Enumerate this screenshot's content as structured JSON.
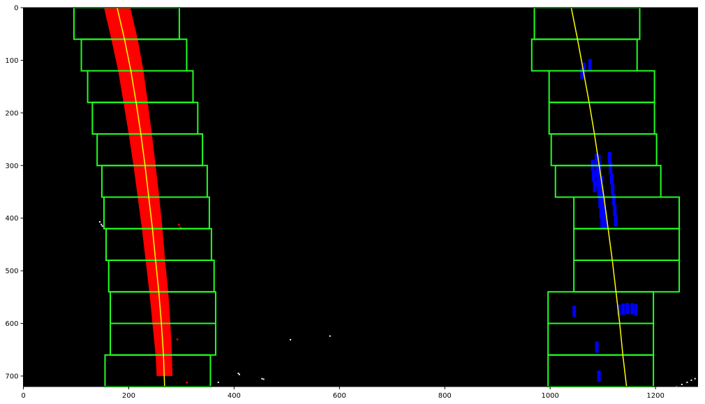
{
  "chart_data": {
    "type": "image-plot",
    "title": "",
    "xlabel": "",
    "ylabel": "",
    "xlim": [
      0,
      1280
    ],
    "ylim": [
      720,
      0
    ],
    "x_ticks": [
      0,
      200,
      400,
      600,
      800,
      1000,
      1200
    ],
    "y_ticks": [
      0,
      100,
      200,
      300,
      400,
      500,
      600,
      700
    ],
    "grid": false,
    "background_color": "#000000",
    "colors": {
      "window": "#22ff22",
      "left_pixels": "#ff0000",
      "right_pixels": "#0000ff",
      "fit_line": "#ffff00",
      "noise": "#ffffff"
    },
    "left_windows": [
      {
        "x0": 96,
        "x1": 296,
        "y0": 0,
        "y1": 60
      },
      {
        "x0": 110,
        "x1": 310,
        "y0": 60,
        "y1": 120
      },
      {
        "x0": 122,
        "x1": 322,
        "y0": 120,
        "y1": 180
      },
      {
        "x0": 131,
        "x1": 331,
        "y0": 180,
        "y1": 240
      },
      {
        "x0": 140,
        "x1": 340,
        "y0": 240,
        "y1": 300
      },
      {
        "x0": 149,
        "x1": 349,
        "y0": 300,
        "y1": 360
      },
      {
        "x0": 153,
        "x1": 353,
        "y0": 360,
        "y1": 420
      },
      {
        "x0": 157,
        "x1": 357,
        "y0": 420,
        "y1": 480
      },
      {
        "x0": 162,
        "x1": 362,
        "y0": 480,
        "y1": 540
      },
      {
        "x0": 165,
        "x1": 365,
        "y0": 540,
        "y1": 600
      },
      {
        "x0": 165,
        "x1": 365,
        "y0": 600,
        "y1": 660
      },
      {
        "x0": 155,
        "x1": 355,
        "y0": 660,
        "y1": 720
      }
    ],
    "right_windows": [
      {
        "x0": 970,
        "x1": 1170,
        "y0": 0,
        "y1": 60
      },
      {
        "x0": 965,
        "x1": 1165,
        "y0": 60,
        "y1": 120
      },
      {
        "x0": 998,
        "x1": 1198,
        "y0": 120,
        "y1": 180
      },
      {
        "x0": 998,
        "x1": 1198,
        "y0": 180,
        "y1": 240
      },
      {
        "x0": 1002,
        "x1": 1202,
        "y0": 240,
        "y1": 300
      },
      {
        "x0": 1010,
        "x1": 1210,
        "y0": 300,
        "y1": 360
      },
      {
        "x0": 1045,
        "x1": 1245,
        "y0": 360,
        "y1": 420
      },
      {
        "x0": 1045,
        "x1": 1245,
        "y0": 420,
        "y1": 480
      },
      {
        "x0": 1045,
        "x1": 1245,
        "y0": 480,
        "y1": 540
      },
      {
        "x0": 996,
        "x1": 1196,
        "y0": 540,
        "y1": 600
      },
      {
        "x0": 996,
        "x1": 1196,
        "y0": 600,
        "y1": 660
      },
      {
        "x0": 996,
        "x1": 1196,
        "y0": 660,
        "y1": 720
      }
    ],
    "left_fit_line": [
      {
        "x": 178,
        "y": 0
      },
      {
        "x": 192,
        "y": 60
      },
      {
        "x": 204,
        "y": 120
      },
      {
        "x": 214,
        "y": 180
      },
      {
        "x": 223,
        "y": 240
      },
      {
        "x": 231,
        "y": 300
      },
      {
        "x": 238,
        "y": 360
      },
      {
        "x": 245,
        "y": 420
      },
      {
        "x": 251,
        "y": 480
      },
      {
        "x": 257,
        "y": 540
      },
      {
        "x": 262,
        "y": 600
      },
      {
        "x": 266,
        "y": 660
      },
      {
        "x": 268,
        "y": 720
      }
    ],
    "left_pixels_band": [
      {
        "y": 0,
        "x_min": 153,
        "x_max": 203
      },
      {
        "y": 60,
        "x_min": 167,
        "x_max": 217
      },
      {
        "y": 120,
        "x_min": 180,
        "x_max": 228
      },
      {
        "y": 180,
        "x_min": 190,
        "x_max": 236
      },
      {
        "y": 240,
        "x_min": 200,
        "x_max": 244
      },
      {
        "y": 300,
        "x_min": 209,
        "x_max": 251
      },
      {
        "y": 360,
        "x_min": 217,
        "x_max": 258
      },
      {
        "y": 420,
        "x_min": 225,
        "x_max": 264
      },
      {
        "y": 480,
        "x_min": 232,
        "x_max": 269
      },
      {
        "y": 540,
        "x_min": 239,
        "x_max": 275
      },
      {
        "y": 600,
        "x_min": 245,
        "x_max": 279
      },
      {
        "y": 660,
        "x_min": 251,
        "x_max": 282
      },
      {
        "y": 700,
        "x_min": 253,
        "x_max": 283
      }
    ],
    "right_fit_line": [
      {
        "x": 1040,
        "y": 0
      },
      {
        "x": 1052,
        "y": 60
      },
      {
        "x": 1063,
        "y": 120
      },
      {
        "x": 1074,
        "y": 180
      },
      {
        "x": 1084,
        "y": 240
      },
      {
        "x": 1093,
        "y": 300
      },
      {
        "x": 1102,
        "y": 360
      },
      {
        "x": 1110,
        "y": 420
      },
      {
        "x": 1118,
        "y": 480
      },
      {
        "x": 1125,
        "y": 540
      },
      {
        "x": 1132,
        "y": 600
      },
      {
        "x": 1138,
        "y": 660
      },
      {
        "x": 1145,
        "y": 720
      }
    ],
    "right_pixels": [
      {
        "x": 1087,
        "y": 288
      },
      {
        "x": 1092,
        "y": 290
      },
      {
        "x": 1088,
        "y": 310
      },
      {
        "x": 1094,
        "y": 310
      },
      {
        "x": 1090,
        "y": 330
      },
      {
        "x": 1096,
        "y": 330
      },
      {
        "x": 1092,
        "y": 350
      },
      {
        "x": 1098,
        "y": 350
      },
      {
        "x": 1094,
        "y": 370
      },
      {
        "x": 1100,
        "y": 370
      },
      {
        "x": 1096,
        "y": 390
      },
      {
        "x": 1102,
        "y": 390
      },
      {
        "x": 1098,
        "y": 410
      },
      {
        "x": 1104,
        "y": 410
      },
      {
        "x": 1112,
        "y": 285
      },
      {
        "x": 1114,
        "y": 305
      },
      {
        "x": 1116,
        "y": 325
      },
      {
        "x": 1118,
        "y": 345
      },
      {
        "x": 1120,
        "y": 365
      },
      {
        "x": 1122,
        "y": 385
      },
      {
        "x": 1124,
        "y": 405
      },
      {
        "x": 1080,
        "y": 300
      },
      {
        "x": 1082,
        "y": 320
      },
      {
        "x": 1084,
        "y": 340
      },
      {
        "x": 1063,
        "y": 115
      },
      {
        "x": 1075,
        "y": 108
      },
      {
        "x": 1060,
        "y": 125
      },
      {
        "x": 1130,
        "y": 575
      },
      {
        "x": 1138,
        "y": 573
      },
      {
        "x": 1146,
        "y": 572
      },
      {
        "x": 1155,
        "y": 572
      },
      {
        "x": 1162,
        "y": 574
      },
      {
        "x": 1088,
        "y": 645
      },
      {
        "x": 1092,
        "y": 700
      },
      {
        "x": 1045,
        "y": 577
      }
    ],
    "noise_pixels": [
      {
        "x": 145,
        "y": 407
      },
      {
        "x": 148,
        "y": 412
      },
      {
        "x": 150,
        "y": 415
      },
      {
        "x": 408,
        "y": 695
      },
      {
        "x": 410,
        "y": 697
      },
      {
        "x": 453,
        "y": 705
      },
      {
        "x": 456,
        "y": 706
      },
      {
        "x": 507,
        "y": 631
      },
      {
        "x": 582,
        "y": 624
      },
      {
        "x": 408,
        "y": 722
      },
      {
        "x": 370,
        "y": 712
      },
      {
        "x": 1240,
        "y": 720
      },
      {
        "x": 1250,
        "y": 716
      },
      {
        "x": 1260,
        "y": 712
      },
      {
        "x": 1268,
        "y": 708
      },
      {
        "x": 1275,
        "y": 705
      }
    ],
    "small_red_marks": [
      {
        "x": 295,
        "y": 412
      },
      {
        "x": 298,
        "y": 418
      },
      {
        "x": 300,
        "y": 420
      },
      {
        "x": 292,
        "y": 630
      },
      {
        "x": 310,
        "y": 712
      }
    ]
  }
}
